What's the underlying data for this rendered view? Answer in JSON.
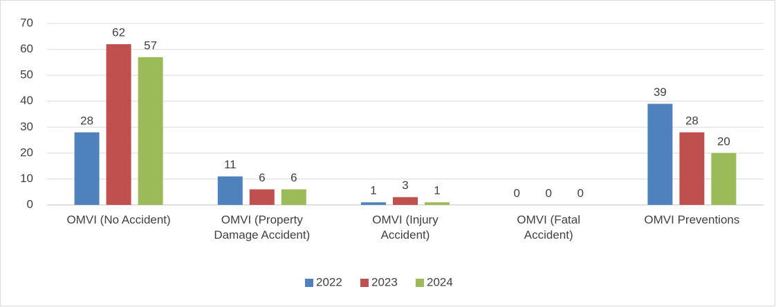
{
  "chart_data": {
    "type": "bar",
    "categories": [
      "OMVI (No Accident)",
      "OMVI  (Property\nDamage Accident)",
      "OMVI  (Injury\nAccident)",
      "OMVI (Fatal\nAccident)",
      "OMVI Preventions"
    ],
    "series": [
      {
        "name": "2022",
        "color": "#4f81bd",
        "values": [
          28,
          11,
          1,
          0,
          39
        ]
      },
      {
        "name": "2023",
        "color": "#c0504d",
        "values": [
          62,
          6,
          3,
          0,
          28
        ]
      },
      {
        "name": "2024",
        "color": "#9bbb59",
        "values": [
          57,
          6,
          1,
          0,
          20
        ]
      }
    ],
    "ylim": [
      0,
      70
    ],
    "yticks": [
      0,
      10,
      20,
      30,
      40,
      50,
      60,
      70
    ],
    "grid": true,
    "legend": "bottom"
  }
}
